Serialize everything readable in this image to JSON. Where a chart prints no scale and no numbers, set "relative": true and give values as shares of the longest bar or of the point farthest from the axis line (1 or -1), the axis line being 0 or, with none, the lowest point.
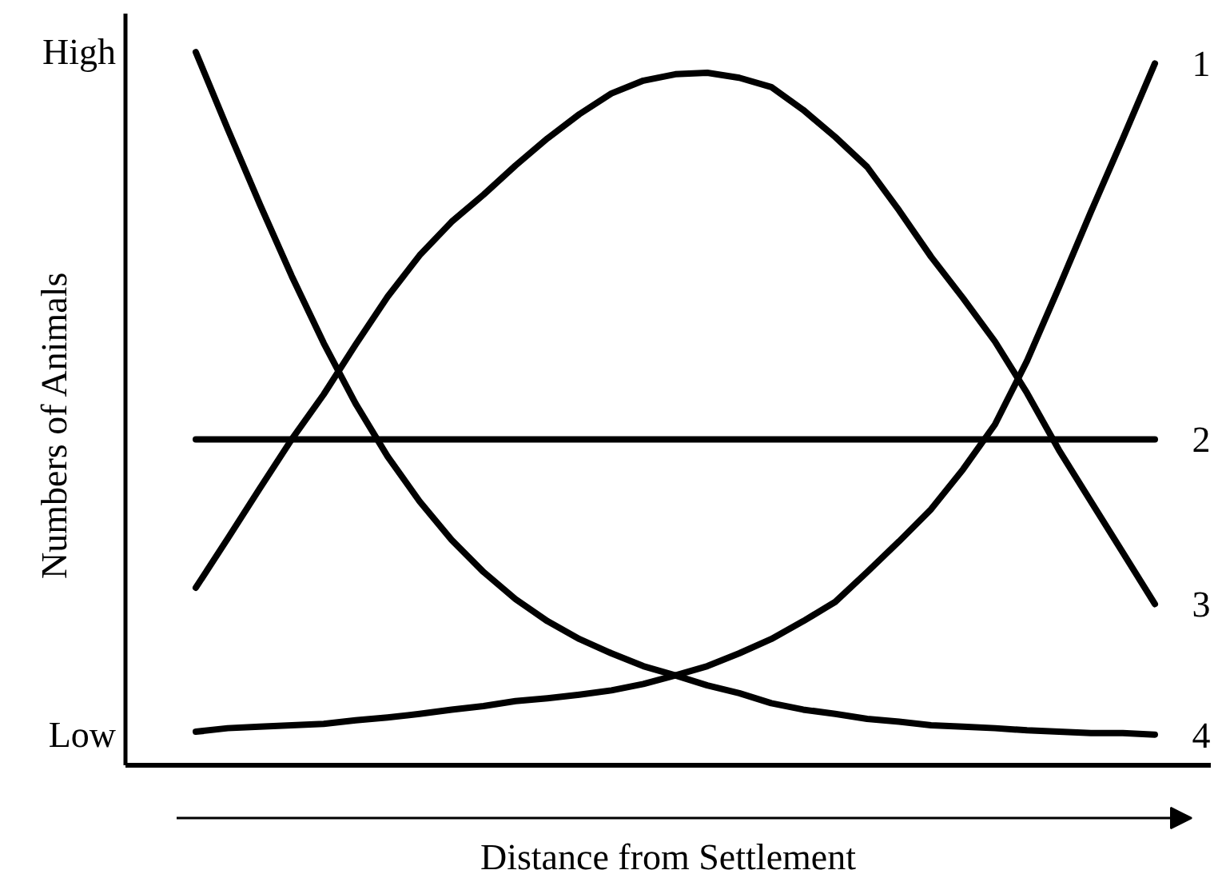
{
  "chart_data": {
    "type": "line",
    "xlabel": "Distance from Settlement",
    "ylabel": "Numbers of Animals",
    "relative": true,
    "categories": [
      null,
      null,
      null,
      null,
      null,
      null,
      null,
      null,
      null,
      null,
      null,
      null,
      null,
      null,
      null,
      null,
      null,
      null,
      null,
      null,
      null,
      null,
      null,
      null,
      null,
      null,
      null,
      null,
      null,
      null,
      null
    ],
    "series": [
      {
        "name": "1",
        "color": "#000000",
        "values": [
          0.047,
          0.052,
          0.054,
          0.056,
          0.058,
          0.063,
          0.067,
          0.072,
          0.078,
          0.083,
          0.09,
          0.094,
          0.099,
          0.105,
          0.114,
          0.126,
          0.139,
          0.157,
          0.177,
          0.202,
          0.229,
          0.271,
          0.314,
          0.359,
          0.415,
          0.478,
          0.567,
          0.67,
          0.776,
          0.879,
          0.984
        ]
      },
      {
        "name": "2",
        "color": "#000000",
        "values": [
          0.457,
          0.457,
          0.457,
          0.457,
          0.457,
          0.457,
          0.457,
          0.457,
          0.457,
          0.457,
          0.457,
          0.457,
          0.457,
          0.457,
          0.457,
          0.457,
          0.457,
          0.457,
          0.457,
          0.457,
          0.457,
          0.457,
          0.457,
          0.457,
          0.457,
          0.457,
          0.457,
          0.457,
          0.457,
          0.457,
          0.457
        ]
      },
      {
        "name": "3",
        "color": "#000000",
        "values": [
          0.249,
          0.318,
          0.388,
          0.457,
          0.52,
          0.59,
          0.657,
          0.715,
          0.762,
          0.8,
          0.841,
          0.879,
          0.913,
          0.942,
          0.96,
          0.969,
          0.971,
          0.964,
          0.951,
          0.919,
          0.881,
          0.839,
          0.778,
          0.713,
          0.655,
          0.594,
          0.522,
          0.442,
          0.37,
          0.298,
          0.226
        ]
      },
      {
        "name": "4",
        "color": "#000000",
        "values": [
          1.0,
          0.892,
          0.787,
          0.686,
          0.592,
          0.507,
          0.433,
          0.37,
          0.316,
          0.271,
          0.233,
          0.202,
          0.177,
          0.157,
          0.139,
          0.126,
          0.112,
          0.101,
          0.087,
          0.078,
          0.072,
          0.065,
          0.061,
          0.056,
          0.054,
          0.052,
          0.049,
          0.047,
          0.045,
          0.045,
          0.043
        ]
      }
    ],
    "annotations": [
      "High",
      "Low"
    ]
  }
}
